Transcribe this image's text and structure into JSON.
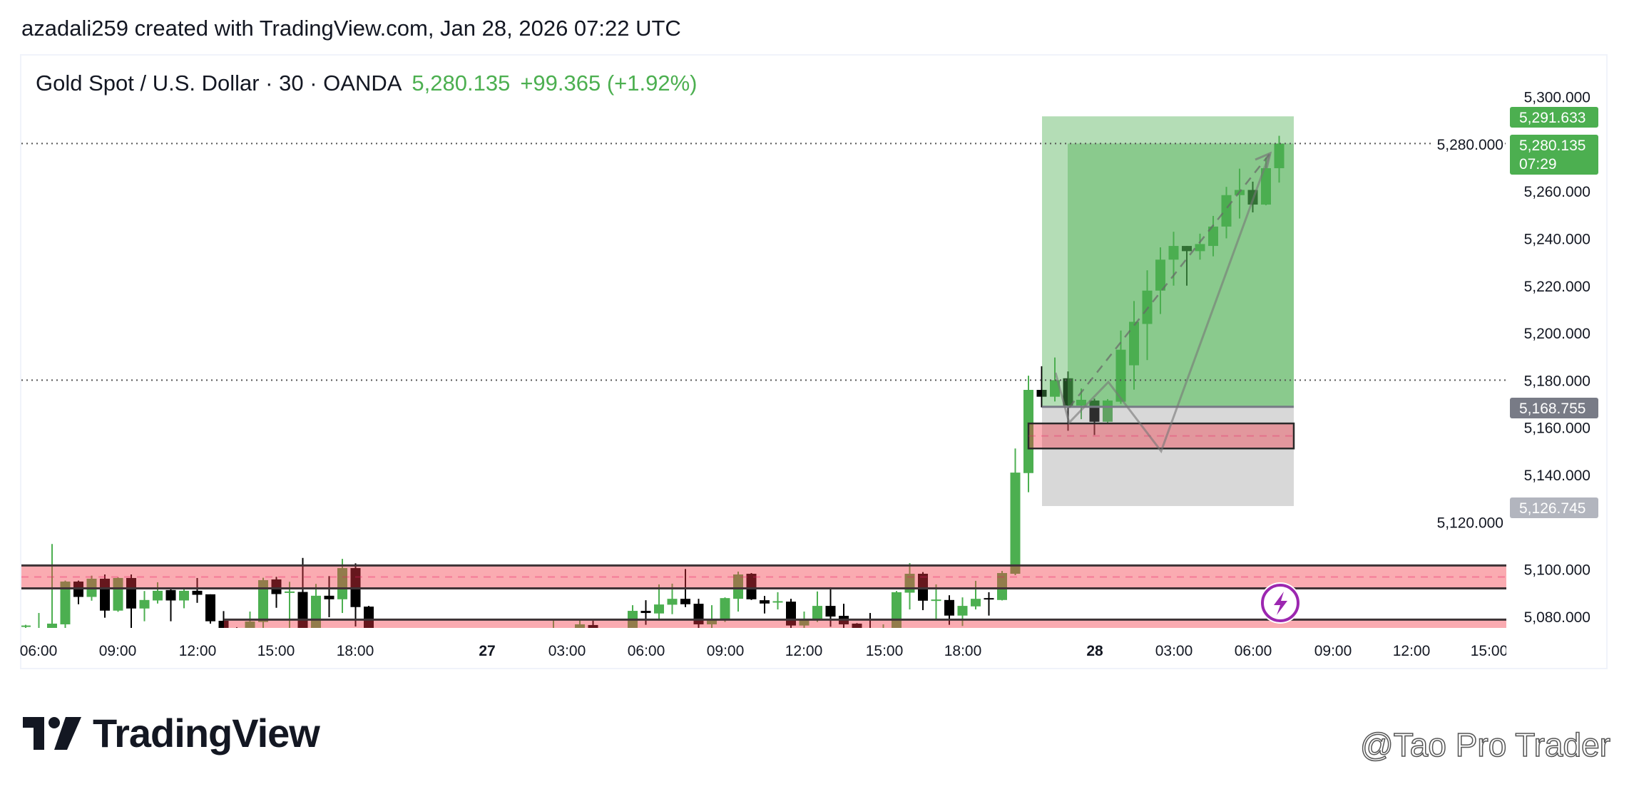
{
  "header": {
    "attribution": "azadali259 created with TradingView.com, Jan 28, 2026 07:22 UTC"
  },
  "legend": {
    "symbol": "Gold Spot / U.S. Dollar · 30 · OANDA",
    "price": "5,280.135",
    "change": "+99.365 (+1.92%)"
  },
  "colors": {
    "up": "#4caf50",
    "down": "#000000",
    "zone": "#f23645",
    "profit": "#4caf50",
    "loss": "#787b86",
    "alert": "#9c27b0"
  },
  "chart_data": {
    "type": "candlestick",
    "timeframe": "30",
    "price_axis": {
      "ticks": [
        "5,300.000",
        "5,280.000",
        "5,260.000",
        "5,240.000",
        "5,220.000",
        "5,200.000",
        "5,180.000",
        "5,160.000",
        "5,140.000",
        "5,120.000",
        "5,100.000",
        "5,080.000"
      ],
      "ylim": [
        5075,
        5300
      ]
    },
    "time_axis": {
      "ticks": [
        "06:00",
        "09:00",
        "12:00",
        "15:00",
        "18:00",
        "27",
        "03:00",
        "06:00",
        "09:00",
        "12:00",
        "15:00",
        "18:00",
        "28",
        "03:00",
        "06:00",
        "09:00",
        "12:00",
        "15:00"
      ]
    },
    "candles_ohlc": [
      [
        5076,
        5076.5,
        5075,
        5076.2
      ],
      [
        5074,
        5081.5,
        5070,
        5074.5
      ],
      [
        5074,
        5110.7,
        5070,
        5077
      ],
      [
        5076.7,
        5095.2,
        5075,
        5094.8
      ],
      [
        5094.8,
        5095.2,
        5085.2,
        5088.3
      ],
      [
        5088.3,
        5097.3,
        5086.7,
        5096
      ],
      [
        5096,
        5097.8,
        5079.5,
        5082.5
      ],
      [
        5082.5,
        5096.6,
        5082,
        5096.3
      ],
      [
        5096.3,
        5097.8,
        5075,
        5083.4
      ],
      [
        5083.4,
        5090.8,
        5078,
        5087
      ],
      [
        5086.8,
        5094.5,
        5085.5,
        5090.9
      ],
      [
        5091.2,
        5092.3,
        5078,
        5086.8
      ],
      [
        5086.8,
        5092,
        5083.5,
        5090.9
      ],
      [
        5090.9,
        5096.3,
        5085.8,
        5089.2
      ],
      [
        5089.4,
        5089.4,
        5077,
        5078
      ],
      [
        5078.2,
        5082.3,
        5074,
        5075
      ],
      [
        5075,
        5075.5,
        5073,
        5074
      ],
      [
        5074,
        5082.1,
        5073,
        5077.9
      ],
      [
        5077.7,
        5096.4,
        5075,
        5095.4
      ],
      [
        5095.7,
        5096.8,
        5083.7,
        5089.5
      ],
      [
        5090.2,
        5094.7,
        5075,
        5090.6
      ],
      [
        5090.4,
        5104.8,
        5073,
        5074
      ],
      [
        5074,
        5093.8,
        5073,
        5088.8
      ],
      [
        5088.8,
        5097.1,
        5079.7,
        5087.3
      ],
      [
        5087.3,
        5104.4,
        5081.5,
        5100.5
      ],
      [
        5100.5,
        5102.5,
        5075.8,
        5084
      ],
      [
        5084.2,
        5084.5,
        5072,
        5074
      ],
      null,
      null,
      null,
      null,
      null,
      null,
      null,
      null,
      null,
      null,
      null,
      null,
      null,
      [
        5072,
        5079.1,
        5070,
        5074
      ],
      null,
      [
        5074,
        5078.5,
        5073,
        5076.7
      ],
      [
        5076.4,
        5078.2,
        5073,
        5074
      ],
      null,
      null,
      [
        5074,
        5084.8,
        5073,
        5082.4
      ],
      [
        5082.4,
        5086.9,
        5076.5,
        5081.5
      ],
      [
        5081.3,
        5093.6,
        5078.3,
        5085.1
      ],
      [
        5085,
        5093.9,
        5081,
        5087.5
      ],
      [
        5087.5,
        5100.1,
        5084,
        5085.2
      ],
      [
        5085.4,
        5087.5,
        5074,
        5076.7
      ],
      [
        5076.7,
        5084.8,
        5074,
        5079.1
      ],
      [
        5078.8,
        5088.1,
        5077.7,
        5087.8
      ],
      [
        5087.5,
        5099,
        5082.1,
        5097.8
      ],
      [
        5098.1,
        5098.4,
        5087,
        5087.3
      ],
      [
        5086.9,
        5088.7,
        5081.3,
        5085.5
      ],
      [
        5086.2,
        5090.3,
        5083,
        5086.5
      ],
      [
        5086.3,
        5087.5,
        5074,
        5076.2
      ],
      [
        5076.2,
        5082.1,
        5074,
        5078.5
      ],
      [
        5078.5,
        5090.6,
        5077.7,
        5084.5
      ],
      [
        5084.5,
        5092.4,
        5075.7,
        5080
      ],
      [
        5080.3,
        5085.4,
        5074,
        5076.7
      ],
      [
        5077,
        5077.2,
        5073,
        5074.5
      ],
      [
        5074,
        5081.5,
        5071,
        5073
      ],
      [
        5073,
        5076.7,
        5072,
        5074
      ],
      [
        5074,
        5090.8,
        5073,
        5090.3
      ],
      [
        5090.1,
        5102.6,
        5083,
        5098.1
      ],
      [
        5098.1,
        5098.8,
        5082.7,
        5086.7
      ],
      [
        5087,
        5093.6,
        5078.5,
        5087.2
      ],
      [
        5087,
        5089,
        5076.5,
        5080.4
      ],
      [
        5080.4,
        5088.1,
        5076,
        5084.5
      ],
      [
        5084.3,
        5095.1,
        5083,
        5087.5
      ],
      [
        5087.8,
        5090.3,
        5080.4,
        5087.4
      ],
      [
        5087,
        5099.3,
        5086.8,
        5098.4
      ],
      [
        5098.1,
        5151.1,
        5097.5,
        5140.9
      ],
      [
        5140.7,
        5181.9,
        5132.6,
        5175.9
      ],
      [
        5175.9,
        5185.9,
        5168.5,
        5173
      ],
      [
        5173,
        5189.6,
        5171,
        5180
      ],
      [
        5180.8,
        5183.7,
        5158.6,
        5169.3
      ],
      [
        5169.3,
        5176.5,
        5163.5,
        5171.7
      ],
      [
        5171.4,
        5172.2,
        5156.8,
        5162.4
      ],
      [
        5162.4,
        5172,
        5162,
        5171.4
      ],
      [
        5170.9,
        5201,
        5170,
        5192.9
      ],
      [
        5186.3,
        5213.5,
        5176,
        5204.7
      ],
      [
        5203.8,
        5226.5,
        5188.5,
        5217.9
      ],
      [
        5217.9,
        5236.2,
        5208,
        5231
      ],
      [
        5231,
        5242.8,
        5220,
        5236.8
      ],
      [
        5236.8,
        5236.8,
        5220,
        5234.6
      ],
      [
        5234.6,
        5242,
        5231,
        5237.6
      ],
      [
        5236.8,
        5249.5,
        5232.4,
        5245
      ],
      [
        5245,
        5261.8,
        5240,
        5258.3
      ],
      [
        5258.3,
        5269.5,
        5248.4,
        5260.5
      ],
      [
        5260.5,
        5264,
        5251,
        5254.3
      ],
      [
        5254.3,
        5274.1,
        5254,
        5269.7
      ],
      [
        5269.7,
        5283.4,
        5263.6,
        5280.1
      ]
    ],
    "zones": [
      {
        "top": 5101.6,
        "bottom": 5091.9
      },
      {
        "top": 5078.7,
        "bottom": 5070
      },
      {
        "top": 5161.7,
        "bottom": 5151.1
      }
    ],
    "long_position": {
      "target": 5291.633,
      "entry": 5168.755,
      "stop": 5126.745
    },
    "horizontal_lines": [
      5280.135,
      5180.0
    ],
    "price_badges": [
      {
        "value": "5,291.633",
        "color": "#4caf50"
      },
      {
        "value": "5,280.135",
        "sub": "07:29",
        "color": "#4caf50"
      },
      {
        "value": "5,168.755",
        "color": "#787b86"
      },
      {
        "value": "5,126.745",
        "color": "#b2b5be"
      }
    ]
  },
  "footer": {
    "logo": "TradingView",
    "watermark": "@Tao Pro Trader"
  }
}
